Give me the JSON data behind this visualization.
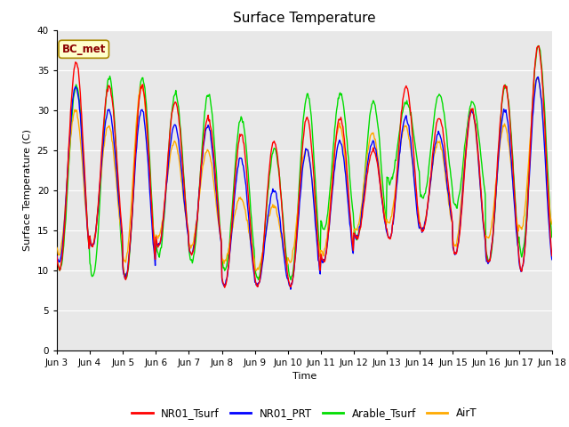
{
  "title": "Surface Temperature",
  "xlabel": "Time",
  "ylabel": "Surface Temperature (C)",
  "ylim": [
    0,
    40
  ],
  "yticks": [
    0,
    5,
    10,
    15,
    20,
    25,
    30,
    35,
    40
  ],
  "xtick_labels": [
    "Jun 3",
    "Jun 4",
    "Jun 5",
    "Jun 6",
    "Jun 7",
    "Jun 8",
    "Jun 9",
    "Jun 10",
    "Jun 11",
    "Jun 12",
    "Jun 13",
    "Jun 14",
    "Jun 15",
    "Jun 16",
    "Jun 17",
    "Jun 18"
  ],
  "annotation_text": "BC_met",
  "series_colors": {
    "NR01_Tsurf": "#ff0000",
    "NR01_PRT": "#0000ff",
    "Arable_Tsurf": "#00dd00",
    "AirT": "#ffaa00"
  },
  "background_color": "#e8e8e8",
  "figure_background": "#ffffff",
  "grid_color": "#ffffff",
  "title_fontsize": 11,
  "axis_fontsize": 8,
  "tick_fontsize": 7.5
}
